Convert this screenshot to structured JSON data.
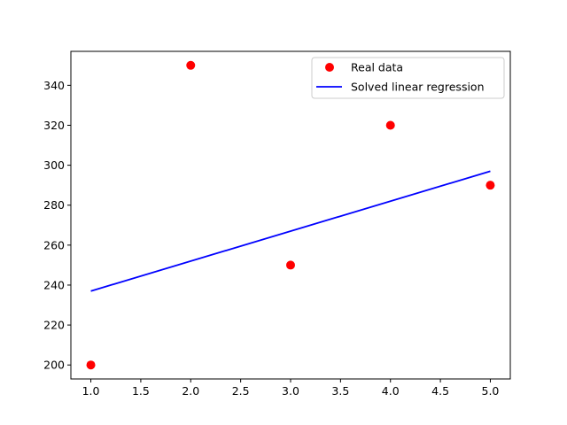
{
  "chart_data": {
    "type": "scatter",
    "title": "",
    "xlabel": "",
    "ylabel": "",
    "xlim": [
      0.8,
      5.2
    ],
    "ylim": [
      193,
      357
    ],
    "grid": false,
    "legend_position": "top-right",
    "x_ticks": [
      1.0,
      1.5,
      2.0,
      2.5,
      3.0,
      3.5,
      4.0,
      4.5,
      5.0
    ],
    "y_ticks": [
      200,
      220,
      240,
      260,
      280,
      300,
      320,
      340
    ],
    "series": [
      {
        "name": "Real data",
        "kind": "scatter",
        "color": "#ff0000",
        "x": [
          1,
          2,
          3,
          4,
          5
        ],
        "y": [
          200,
          350,
          250,
          320,
          290
        ]
      },
      {
        "name": "Solved linear regression",
        "kind": "line",
        "color": "#0000ff",
        "x": [
          1,
          5
        ],
        "y": [
          237,
          297
        ]
      }
    ]
  }
}
